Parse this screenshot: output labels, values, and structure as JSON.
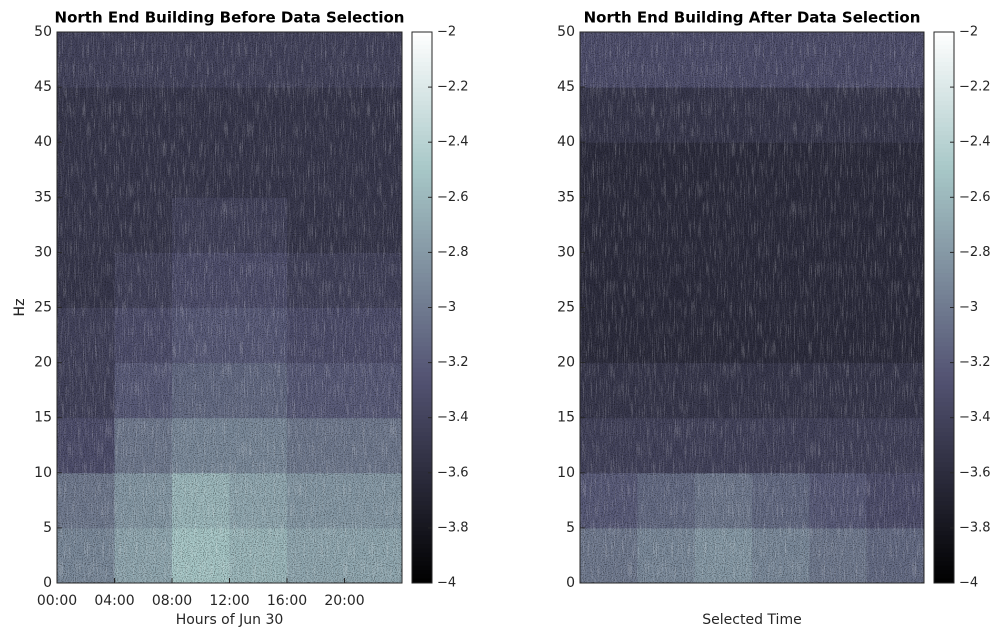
{
  "chart_data": [
    {
      "type": "heatmap",
      "title": "North End Building Before Data Selection",
      "xlabel": "Hours of Jun 30",
      "ylabel": "Hz",
      "xlim": [
        0,
        24
      ],
      "xticks": [
        {
          "value": 0,
          "label": "00:00"
        },
        {
          "value": 4,
          "label": "04:00"
        },
        {
          "value": 8,
          "label": "08:00"
        },
        {
          "value": 12,
          "label": "12:00"
        },
        {
          "value": 16,
          "label": "16:00"
        },
        {
          "value": 20,
          "label": "20:00"
        }
      ],
      "ylim": [
        0,
        50
      ],
      "yticks": [
        0,
        5,
        10,
        15,
        20,
        25,
        30,
        35,
        40,
        45,
        50
      ],
      "x_bins": [
        0,
        4,
        8,
        12,
        16,
        20,
        24
      ],
      "y_bins": [
        0,
        5,
        10,
        15,
        20,
        25,
        30,
        35,
        40,
        45,
        50
      ],
      "values": [
        [
          -2.9,
          -2.7,
          -2.5,
          -2.6,
          -2.7,
          -2.7
        ],
        [
          -3.0,
          -2.8,
          -2.6,
          -2.7,
          -2.8,
          -2.8
        ],
        [
          -3.3,
          -3.0,
          -2.9,
          -2.9,
          -3.0,
          -3.0
        ],
        [
          -3.4,
          -3.2,
          -3.1,
          -3.1,
          -3.2,
          -3.2
        ],
        [
          -3.4,
          -3.3,
          -3.2,
          -3.2,
          -3.3,
          -3.3
        ],
        [
          -3.5,
          -3.4,
          -3.3,
          -3.3,
          -3.4,
          -3.4
        ],
        [
          -3.5,
          -3.5,
          -3.4,
          -3.4,
          -3.5,
          -3.5
        ],
        [
          -3.5,
          -3.5,
          -3.5,
          -3.5,
          -3.5,
          -3.5
        ],
        [
          -3.5,
          -3.5,
          -3.5,
          -3.5,
          -3.5,
          -3.5
        ],
        [
          -3.4,
          -3.4,
          -3.4,
          -3.4,
          -3.4,
          -3.4
        ]
      ],
      "zlim": [
        -4,
        -2
      ],
      "zticks": [
        {
          "value": -4,
          "label": "−4"
        },
        {
          "value": -3.8,
          "label": "−3.8"
        },
        {
          "value": -3.6,
          "label": "−3.6"
        },
        {
          "value": -3.4,
          "label": "−3.4"
        },
        {
          "value": -3.2,
          "label": "−3.2"
        },
        {
          "value": -3,
          "label": "−3"
        },
        {
          "value": -2.8,
          "label": "−2.8"
        },
        {
          "value": -2.6,
          "label": "−2.6"
        },
        {
          "value": -2.4,
          "label": "−2.4"
        },
        {
          "value": -2.2,
          "label": "−2.2"
        },
        {
          "value": -2,
          "label": "−2"
        }
      ]
    },
    {
      "type": "heatmap",
      "title": "North End Building After Data Selection",
      "xlabel": "Selected Time",
      "ylabel": "Hz",
      "ylim": [
        0,
        50
      ],
      "yticks": [
        0,
        5,
        10,
        15,
        20,
        25,
        30,
        35,
        40,
        45,
        50
      ],
      "y_bins": [
        0,
        5,
        10,
        15,
        20,
        25,
        30,
        35,
        40,
        45,
        50
      ],
      "values": [
        [
          -3.0,
          -2.9,
          -2.8,
          -2.9,
          -3.0,
          -3.1
        ],
        [
          -3.2,
          -3.1,
          -3.0,
          -3.1,
          -3.2,
          -3.3
        ],
        [
          -3.4,
          -3.4,
          -3.4,
          -3.4,
          -3.4,
          -3.4
        ],
        [
          -3.5,
          -3.5,
          -3.5,
          -3.5,
          -3.5,
          -3.5
        ],
        [
          -3.6,
          -3.6,
          -3.6,
          -3.6,
          -3.6,
          -3.6
        ],
        [
          -3.6,
          -3.6,
          -3.6,
          -3.6,
          -3.6,
          -3.6
        ],
        [
          -3.6,
          -3.6,
          -3.6,
          -3.6,
          -3.6,
          -3.6
        ],
        [
          -3.6,
          -3.6,
          -3.6,
          -3.6,
          -3.6,
          -3.6
        ],
        [
          -3.5,
          -3.5,
          -3.5,
          -3.5,
          -3.5,
          -3.5
        ],
        [
          -3.3,
          -3.3,
          -3.3,
          -3.3,
          -3.3,
          -3.3
        ]
      ],
      "zlim": [
        -4,
        -2
      ],
      "zticks": [
        {
          "value": -4,
          "label": "−4"
        },
        {
          "value": -3.8,
          "label": "−3.8"
        },
        {
          "value": -3.6,
          "label": "−3.6"
        },
        {
          "value": -3.4,
          "label": "−3.4"
        },
        {
          "value": -3.2,
          "label": "−3.2"
        },
        {
          "value": -3,
          "label": "−3"
        },
        {
          "value": -2.8,
          "label": "−2.8"
        },
        {
          "value": -2.6,
          "label": "−2.6"
        },
        {
          "value": -2.4,
          "label": "−2.4"
        },
        {
          "value": -2.2,
          "label": "−2.2"
        },
        {
          "value": -2,
          "label": "−2"
        }
      ]
    }
  ]
}
